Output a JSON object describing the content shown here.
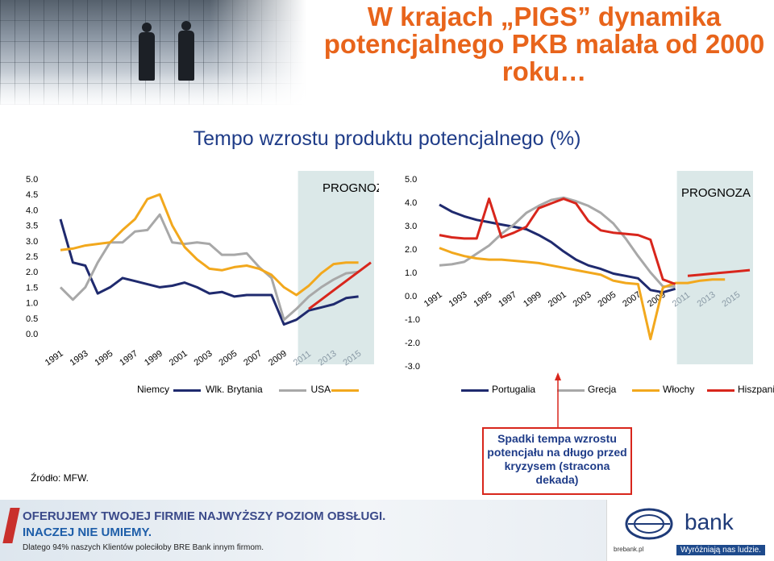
{
  "title": "W krajach „PIGS” dynamika potencjalnego PKB malała od 2000 roku…",
  "subtitle": "Tempo wzrostu produktu potencjalnego (%)",
  "source": "Źródło: MFW.",
  "callout": "Spadki tempa wzrostu potencjału na długo przed kryzysem (stracona dekada)",
  "banner": {
    "line1": "OFERUJEMY TWOJEJ FIRMIE NAJWYŻSZY POZIOM OBSŁUGI.",
    "line2": "INACZEJ NIE UMIEMY.",
    "line3": "Dlatego 94% naszych Klientów poleciłoby BRE Bank innym firmom.",
    "brand": "bank",
    "url": "brebank.pl",
    "slogan": "Wyróżniają nas ludzie."
  },
  "icons": [
    "people-silhouette-photo",
    "bre-bank-logo-icon"
  ],
  "colors": {
    "title": "#e8641b",
    "subtitle": "#1f3c88",
    "forecast_band": "#dbe8e8",
    "callout_border": "#d8261c"
  },
  "chart_data": [
    {
      "type": "line",
      "annotation": "PROGNOZA",
      "forecast_from": 2010,
      "x": [
        1991,
        1992,
        1993,
        1994,
        1995,
        1996,
        1997,
        1998,
        1999,
        2000,
        2001,
        2002,
        2003,
        2004,
        2005,
        2006,
        2007,
        2008,
        2009,
        2010,
        2011,
        2012,
        2013,
        2014,
        2015,
        2016
      ],
      "x_ticks": [
        "1991",
        "1993",
        "1995",
        "1997",
        "1999",
        "2001",
        "2003",
        "2005",
        "2007",
        "2009",
        "2011",
        "2013",
        "2015"
      ],
      "ylim": [
        0,
        5
      ],
      "y_ticks": [
        "0.0",
        "0.5",
        "1.0",
        "1.5",
        "2.0",
        "2.5",
        "3.0",
        "3.5",
        "4.0",
        "4.5",
        "5.0"
      ],
      "grid": false,
      "legend_position": "bottom",
      "series": [
        {
          "name": "Niemcy",
          "color": "#1f2a6e",
          "values": [
            3.7,
            2.3,
            2.2,
            1.3,
            1.5,
            1.8,
            1.7,
            1.6,
            1.5,
            1.55,
            1.65,
            1.5,
            1.3,
            1.35,
            1.2,
            1.25,
            1.25,
            1.25,
            0.3,
            0.45,
            0.75,
            0.85,
            0.95,
            1.15,
            1.2,
            null
          ]
        },
        {
          "name": "Wlk. Brytania",
          "color": "#a8a8a8",
          "values": [
            1.5,
            1.1,
            1.5,
            2.3,
            2.95,
            2.95,
            3.3,
            3.35,
            3.85,
            2.95,
            2.9,
            2.95,
            2.9,
            2.55,
            2.55,
            2.6,
            2.15,
            1.8,
            0.45,
            0.8,
            1.2,
            1.5,
            1.75,
            1.95,
            2.0,
            null
          ]
        },
        {
          "name": "USA",
          "color": "#f2a81d",
          "values": [
            2.7,
            2.75,
            2.85,
            2.9,
            2.95,
            3.35,
            3.7,
            4.35,
            4.5,
            3.5,
            2.8,
            2.4,
            2.1,
            2.05,
            2.15,
            2.2,
            2.1,
            1.9,
            1.5,
            1.25,
            1.55,
            1.95,
            2.25,
            2.3,
            2.3,
            null
          ]
        },
        {
          "name": "",
          "color": "#d8261c",
          "values": [
            null,
            null,
            null,
            null,
            null,
            null,
            null,
            null,
            null,
            null,
            null,
            null,
            null,
            null,
            null,
            null,
            null,
            null,
            null,
            null,
            0.8,
            1.1,
            1.4,
            1.7,
            2.0,
            2.3
          ]
        }
      ]
    },
    {
      "type": "line",
      "annotation": "PROGNOZA",
      "forecast_from": 2010,
      "x": [
        1991,
        1992,
        1993,
        1994,
        1995,
        1996,
        1997,
        1998,
        1999,
        2000,
        2001,
        2002,
        2003,
        2004,
        2005,
        2006,
        2007,
        2008,
        2009,
        2010,
        2011,
        2012,
        2013,
        2014,
        2015,
        2016
      ],
      "x_ticks": [
        "1991",
        "1993",
        "1995",
        "1997",
        "1999",
        "2001",
        "2003",
        "2005",
        "2007",
        "2009",
        "2011",
        "2013",
        "2015"
      ],
      "ylim": [
        -3,
        5
      ],
      "y_ticks": [
        "-3.0",
        "-2.0",
        "-1.0",
        "0.0",
        "1.0",
        "2.0",
        "3.0",
        "4.0",
        "5.0"
      ],
      "grid": false,
      "legend_position": "bottom",
      "series": [
        {
          "name": "Portugalia",
          "color": "#1f2a6e",
          "values": [
            3.9,
            3.6,
            3.4,
            3.25,
            3.15,
            3.05,
            2.95,
            2.85,
            2.6,
            2.3,
            1.9,
            1.55,
            1.3,
            1.15,
            0.95,
            0.85,
            0.75,
            0.25,
            0.15,
            0.3,
            null,
            null,
            null,
            null,
            null,
            null
          ]
        },
        {
          "name": "Grecja",
          "color": "#a8a8a8",
          "values": [
            1.3,
            1.35,
            1.45,
            1.8,
            2.15,
            2.65,
            3.05,
            3.55,
            3.85,
            4.1,
            4.2,
            4.05,
            3.85,
            3.55,
            3.1,
            2.45,
            1.7,
            1.0,
            0.4,
            0.4,
            null,
            null,
            null,
            null,
            null,
            null
          ]
        },
        {
          "name": "Włochy",
          "color": "#f2a81d",
          "values": [
            2.05,
            1.85,
            1.7,
            1.6,
            1.55,
            1.55,
            1.5,
            1.45,
            1.4,
            1.3,
            1.2,
            1.1,
            1.0,
            0.9,
            0.65,
            0.55,
            0.5,
            -1.85,
            0.35,
            0.55,
            0.55,
            0.65,
            0.7,
            0.7,
            null,
            null
          ]
        },
        {
          "name": "Hiszpania",
          "color": "#d8261c",
          "values": [
            2.6,
            2.5,
            2.45,
            2.45,
            4.15,
            2.5,
            2.7,
            2.95,
            3.75,
            3.95,
            4.15,
            3.95,
            3.2,
            2.8,
            2.7,
            2.65,
            2.6,
            2.4,
            0.7,
            0.5,
            null,
            null,
            null,
            null,
            null,
            null
          ],
          "forecast_values": [
            null,
            null,
            null,
            null,
            null,
            null,
            null,
            null,
            null,
            null,
            null,
            null,
            null,
            null,
            null,
            null,
            null,
            null,
            null,
            null,
            0.85,
            0.9,
            0.95,
            1.0,
            1.05,
            1.1
          ]
        }
      ]
    }
  ]
}
